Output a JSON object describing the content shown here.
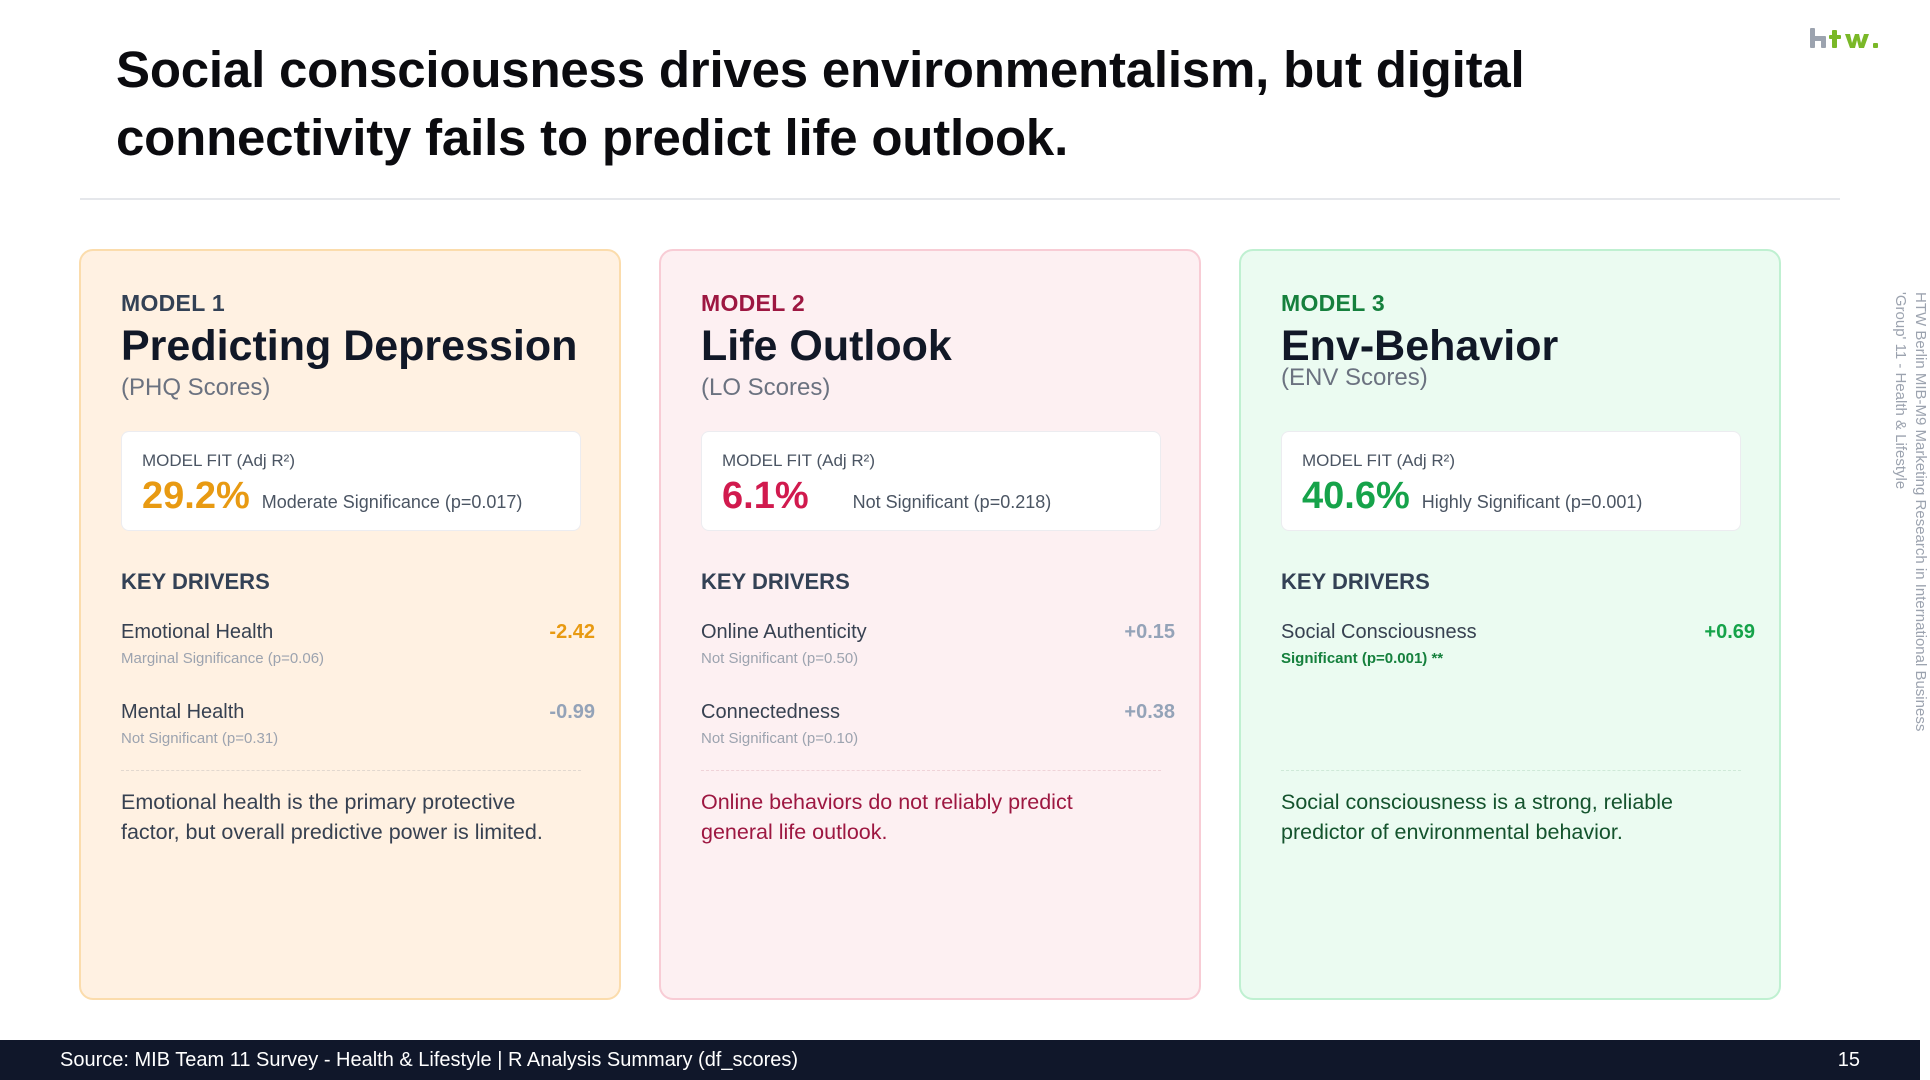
{
  "title": "Social consciousness drives environmentalism, but digital connectivity fails to predict life outlook.",
  "brand": {
    "logo_text": "htw.",
    "logo_color": "#7ab828",
    "logo_gray": "#9ca3af"
  },
  "side_text": {
    "line1": "HTW Berlin MIB-M9 Marketing Research in International Business",
    "line2": "'Group' 11 - Health & Lifestyle"
  },
  "cards": [
    {
      "model": "MODEL 1",
      "title": "Predicting Depression",
      "subtitle": "(PHQ Scores)",
      "fit_label": "MODEL FIT (Adj R²)",
      "fit_value": "29.2%",
      "fit_sig": "Moderate Significance (p=0.017)",
      "drivers_heading": "KEY DRIVERS",
      "drivers": [
        {
          "name": "Emotional Health",
          "value": "-2.42",
          "note": "Marginal Significance (p=0.06)"
        },
        {
          "name": "Mental Health",
          "value": "-0.99",
          "note": "Not Significant (p=0.31)"
        }
      ],
      "summary": "Emotional health is the primary protective factor, but overall predictive power is limited.",
      "accent": "#e89a12"
    },
    {
      "model": "MODEL 2",
      "title": "Life Outlook",
      "subtitle": "(LO Scores)",
      "fit_label": "MODEL FIT (Adj R²)",
      "fit_value": "6.1%",
      "fit_sig": "Not Significant (p=0.218)",
      "drivers_heading": "KEY DRIVERS",
      "drivers": [
        {
          "name": "Online Authenticity",
          "value": "+0.15",
          "note": "Not Significant (p=0.50)"
        },
        {
          "name": "Connectedness",
          "value": "+0.38",
          "note": "Not Significant (p=0.10)"
        }
      ],
      "summary": "Online behaviors do not reliably predict general life outlook.",
      "accent": "#d11a4e"
    },
    {
      "model": "MODEL 3",
      "title": "Env-Behavior",
      "subtitle": "(ENV Scores)",
      "fit_label": "MODEL FIT (Adj R²)",
      "fit_value": "40.6%",
      "fit_sig": "Highly Significant (p=0.001)",
      "drivers_heading": "KEY DRIVERS",
      "drivers": [
        {
          "name": "Social Consciousness",
          "value": "+0.69",
          "note": "Significant (p=0.001) **"
        }
      ],
      "summary": "Social consciousness is a strong, reliable predictor of environmental behavior.",
      "accent": "#16a34a"
    }
  ],
  "footer": {
    "source": "Source: MIB Team 11 Survey - Health & Lifestyle | R Analysis Summary (df_scores)",
    "page": "15"
  }
}
